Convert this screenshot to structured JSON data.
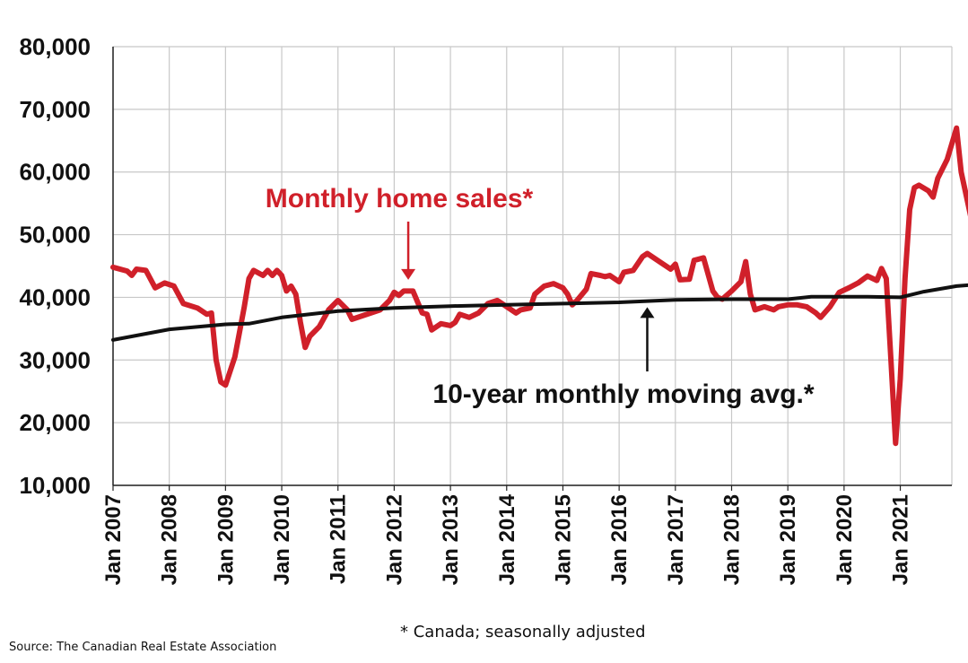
{
  "chart_data": {
    "type": "line",
    "title": "",
    "xlabel": "",
    "ylabel": "",
    "ylim": [
      10000,
      80000
    ],
    "yticks": [
      10000,
      20000,
      30000,
      40000,
      50000,
      60000,
      70000,
      80000
    ],
    "ytick_labels": [
      "10,000",
      "20,000",
      "30,000",
      "40,000",
      "50,000",
      "60,000",
      "70,000",
      "80,000"
    ],
    "xlim": [
      "2007-01",
      "2021-12"
    ],
    "xtick_labels": [
      "Jan 2007",
      "Jan 2008",
      "Jan 2009",
      "Jan 2010",
      "Jan 2011",
      "Jan 2012",
      "Jan 2013",
      "Jan 2014",
      "Jan 2015",
      "Jan 2016",
      "Jan 2017",
      "Jan 2018",
      "Jan 2019",
      "Jan 2020",
      "Jan 2021"
    ],
    "grid": true,
    "series": [
      {
        "name": "Monthly home sales*",
        "color": "#d0202a",
        "points": [
          [
            "2007-01",
            44800
          ],
          [
            "2007-04",
            44200
          ],
          [
            "2007-05",
            43500
          ],
          [
            "2007-06",
            44500
          ],
          [
            "2007-08",
            44300
          ],
          [
            "2007-10",
            41500
          ],
          [
            "2007-12",
            42300
          ],
          [
            "2008-02",
            41800
          ],
          [
            "2008-04",
            39000
          ],
          [
            "2008-07",
            38300
          ],
          [
            "2008-09",
            37300
          ],
          [
            "2008-10",
            37500
          ],
          [
            "2008-11",
            30000
          ],
          [
            "2008-12",
            26500
          ],
          [
            "2009-01",
            26000
          ],
          [
            "2009-03",
            30500
          ],
          [
            "2009-05",
            38500
          ],
          [
            "2009-06",
            43000
          ],
          [
            "2009-07",
            44300
          ],
          [
            "2009-09",
            43500
          ],
          [
            "2009-10",
            44300
          ],
          [
            "2009-11",
            43500
          ],
          [
            "2009-12",
            44300
          ],
          [
            "2010-01",
            43500
          ],
          [
            "2010-02",
            41000
          ],
          [
            "2010-03",
            41800
          ],
          [
            "2010-04",
            40500
          ],
          [
            "2010-05",
            36000
          ],
          [
            "2010-06",
            32000
          ],
          [
            "2010-07",
            33800
          ],
          [
            "2010-09",
            35300
          ],
          [
            "2010-11",
            38000
          ],
          [
            "2011-01",
            39500
          ],
          [
            "2011-03",
            38000
          ],
          [
            "2011-04",
            36500
          ],
          [
            "2011-06",
            37000
          ],
          [
            "2011-08",
            37500
          ],
          [
            "2011-10",
            38000
          ],
          [
            "2011-12",
            39500
          ],
          [
            "2012-01",
            40800
          ],
          [
            "2012-02",
            40300
          ],
          [
            "2012-03",
            41000
          ],
          [
            "2012-05",
            41000
          ],
          [
            "2012-07",
            37500
          ],
          [
            "2012-08",
            37300
          ],
          [
            "2012-09",
            34800
          ],
          [
            "2012-11",
            35800
          ],
          [
            "2013-01",
            35500
          ],
          [
            "2013-02",
            36000
          ],
          [
            "2013-03",
            37300
          ],
          [
            "2013-05",
            36800
          ],
          [
            "2013-07",
            37500
          ],
          [
            "2013-09",
            39000
          ],
          [
            "2013-11",
            39500
          ],
          [
            "2014-01",
            38500
          ],
          [
            "2014-03",
            37500
          ],
          [
            "2014-04",
            38000
          ],
          [
            "2014-06",
            38300
          ],
          [
            "2014-07",
            40500
          ],
          [
            "2014-09",
            41800
          ],
          [
            "2014-11",
            42200
          ],
          [
            "2015-01",
            41500
          ],
          [
            "2015-02",
            40500
          ],
          [
            "2015-03",
            38800
          ],
          [
            "2015-04",
            39500
          ],
          [
            "2015-06",
            41300
          ],
          [
            "2015-07",
            43800
          ],
          [
            "2015-09",
            43500
          ],
          [
            "2015-10",
            43300
          ],
          [
            "2015-11",
            43500
          ],
          [
            "2016-01",
            42500
          ],
          [
            "2016-02",
            44000
          ],
          [
            "2016-04",
            44300
          ],
          [
            "2016-06",
            46500
          ],
          [
            "2016-07",
            47000
          ],
          [
            "2016-08",
            46500
          ],
          [
            "2016-10",
            45500
          ],
          [
            "2016-12",
            44500
          ],
          [
            "2017-01",
            45300
          ],
          [
            "2017-02",
            42800
          ],
          [
            "2017-04",
            42900
          ],
          [
            "2017-05",
            45900
          ],
          [
            "2017-07",
            46300
          ],
          [
            "2017-09",
            41000
          ],
          [
            "2017-10",
            40000
          ],
          [
            "2017-11",
            39700
          ],
          [
            "2018-01",
            41000
          ],
          [
            "2018-03",
            42500
          ],
          [
            "2018-04",
            45700
          ],
          [
            "2018-05",
            40500
          ],
          [
            "2018-06",
            38000
          ],
          [
            "2018-08",
            38500
          ],
          [
            "2018-10",
            38000
          ],
          [
            "2018-11",
            38500
          ],
          [
            "2019-01",
            38800
          ],
          [
            "2019-03",
            38800
          ],
          [
            "2019-05",
            38500
          ],
          [
            "2019-07",
            37500
          ],
          [
            "2019-08",
            36800
          ],
          [
            "2019-10",
            38500
          ],
          [
            "2019-12",
            40800
          ],
          [
            "2020-02",
            41500
          ],
          [
            "2020-04",
            42300
          ],
          [
            "2020-06",
            43400
          ],
          [
            "2020-08",
            42700
          ],
          [
            "2020-09",
            44600
          ],
          [
            "2020-10",
            43000
          ],
          [
            "2020-11",
            30000
          ],
          [
            "2020-12",
            16700
          ],
          [
            "2021-01",
            27000
          ],
          [
            "2021-02",
            43000
          ],
          [
            "2021-03",
            54000
          ],
          [
            "2021-04",
            57500
          ],
          [
            "2021-05",
            57900
          ],
          [
            "2021-07",
            57000
          ],
          [
            "2021-08",
            56000
          ],
          [
            "2021-09",
            59000
          ],
          [
            "2021-11",
            62000
          ],
          [
            "2022-01",
            67000
          ],
          [
            "2022-02",
            60000
          ],
          [
            "2022-04",
            53000
          ],
          [
            "2022-05",
            49000
          ],
          [
            "2022-06",
            48500
          ],
          [
            "2022-07",
            48500
          ],
          [
            "2022-09",
            49000
          ]
        ]
      },
      {
        "name": "10-year monthly moving avg.*",
        "color": "#111111",
        "points": [
          [
            "2007-01",
            33200
          ],
          [
            "2008-01",
            34900
          ],
          [
            "2009-01",
            35700
          ],
          [
            "2009-06",
            35800
          ],
          [
            "2010-01",
            36800
          ],
          [
            "2011-01",
            37800
          ],
          [
            "2012-01",
            38300
          ],
          [
            "2013-01",
            38600
          ],
          [
            "2014-01",
            38800
          ],
          [
            "2015-01",
            39000
          ],
          [
            "2016-01",
            39200
          ],
          [
            "2017-01",
            39600
          ],
          [
            "2018-01",
            39700
          ],
          [
            "2019-01",
            39700
          ],
          [
            "2019-06",
            40100
          ],
          [
            "2020-01",
            40100
          ],
          [
            "2020-06",
            40100
          ],
          [
            "2021-01",
            40000
          ],
          [
            "2021-06",
            40900
          ],
          [
            "2022-01",
            41800
          ],
          [
            "2022-09",
            42300
          ]
        ]
      }
    ],
    "annotations": [
      {
        "text": "Monthly home sales*",
        "arrow_to": [
          "2012-04",
          40800
        ]
      },
      {
        "text": "10-year monthly moving avg.*",
        "arrow_to": [
          "2016-07",
          39300
        ]
      }
    ]
  },
  "footnote": "* Canada; seasonally adjusted",
  "source": "Source: The Canadian Real Estate Association"
}
